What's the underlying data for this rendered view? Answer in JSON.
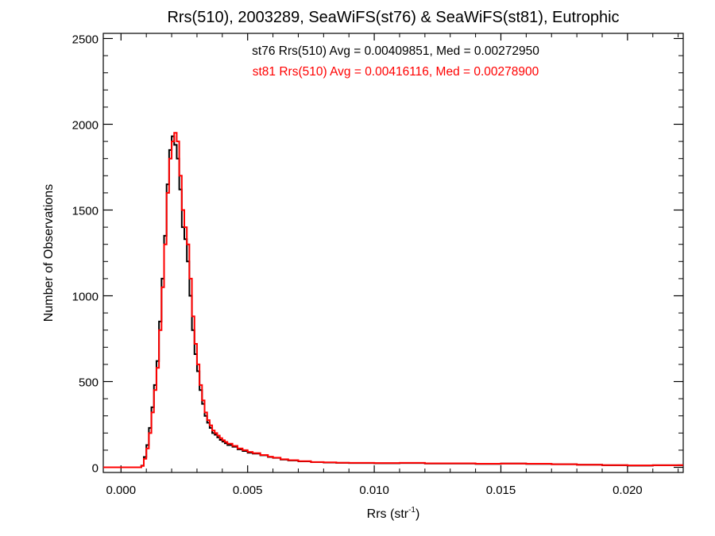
{
  "chart_data": {
    "type": "line",
    "title": "Rrs(510), 2003289, SeaWiFS(st76) & SeaWiFS(st81), Eutrophic",
    "xlabel_main": "Rrs (str",
    "xlabel_sup": "-1",
    "xlabel_close": ")",
    "ylabel": "Number of Observations",
    "xlim": [
      -0.0007,
      0.0222
    ],
    "ylim": [
      -30,
      2530
    ],
    "grid": false,
    "x_ticks": [
      0.0,
      0.005,
      0.01,
      0.015,
      0.02
    ],
    "x_tick_labels": [
      "0.000",
      "0.005",
      "0.010",
      "0.015",
      "0.020"
    ],
    "y_ticks": [
      0,
      500,
      1000,
      1500,
      2000,
      2500
    ],
    "y_tick_labels": [
      "0",
      "500",
      "1000",
      "1500",
      "2000",
      "2500"
    ],
    "annotations": [
      {
        "text": "st76 Rrs(510) Avg = 0.00409851, Med = 0.00272950",
        "color": "#000000"
      },
      {
        "text": "st81 Rrs(510) Avg = 0.00416116, Med = 0.00278900",
        "color": "#ff0000"
      }
    ],
    "series": [
      {
        "color": "#000000",
        "step": true,
        "x": [
          -0.0007,
          0.0,
          0.0008,
          0.0009,
          0.001,
          0.0011,
          0.0012,
          0.0013,
          0.0014,
          0.0015,
          0.0016,
          0.0017,
          0.0018,
          0.0019,
          0.002,
          0.0021,
          0.0022,
          0.0023,
          0.0024,
          0.0025,
          0.0026,
          0.0027,
          0.0028,
          0.0029,
          0.003,
          0.0031,
          0.0032,
          0.0033,
          0.0034,
          0.0035,
          0.0036,
          0.0037,
          0.0038,
          0.0039,
          0.004,
          0.0041,
          0.0042,
          0.0044,
          0.0046,
          0.0048,
          0.005,
          0.0052,
          0.0055,
          0.0058,
          0.006,
          0.0063,
          0.0066,
          0.007,
          0.0075,
          0.008,
          0.0085,
          0.009,
          0.0095,
          0.01,
          0.011,
          0.012,
          0.013,
          0.014,
          0.015,
          0.016,
          0.017,
          0.018,
          0.019,
          0.02,
          0.021,
          0.022
        ],
        "y": [
          0,
          0,
          10,
          60,
          130,
          230,
          350,
          480,
          620,
          850,
          1100,
          1350,
          1650,
          1850,
          1930,
          1880,
          1800,
          1620,
          1400,
          1330,
          1200,
          1000,
          800,
          660,
          560,
          450,
          370,
          300,
          260,
          230,
          200,
          190,
          175,
          160,
          150,
          140,
          130,
          120,
          105,
          95,
          85,
          80,
          70,
          60,
          55,
          45,
          40,
          35,
          30,
          28,
          26,
          25,
          25,
          24,
          25,
          22,
          22,
          20,
          22,
          20,
          18,
          15,
          12,
          10,
          12,
          12
        ]
      },
      {
        "color": "#ff0000",
        "step": true,
        "x": [
          -0.0007,
          0.0,
          0.0008,
          0.0009,
          0.001,
          0.0011,
          0.0012,
          0.0013,
          0.0014,
          0.0015,
          0.0016,
          0.0017,
          0.0018,
          0.0019,
          0.002,
          0.0021,
          0.0022,
          0.0023,
          0.0024,
          0.0025,
          0.0026,
          0.0027,
          0.0028,
          0.0029,
          0.003,
          0.0031,
          0.0032,
          0.0033,
          0.0034,
          0.0035,
          0.0036,
          0.0037,
          0.0038,
          0.0039,
          0.004,
          0.0041,
          0.0042,
          0.0044,
          0.0046,
          0.0048,
          0.005,
          0.0052,
          0.0055,
          0.0058,
          0.006,
          0.0063,
          0.0066,
          0.007,
          0.0075,
          0.008,
          0.0085,
          0.009,
          0.0095,
          0.01,
          0.011,
          0.012,
          0.013,
          0.014,
          0.015,
          0.016,
          0.017,
          0.018,
          0.019,
          0.02,
          0.021,
          0.022
        ],
        "y": [
          0,
          0,
          8,
          50,
          110,
          200,
          320,
          450,
          580,
          800,
          1050,
          1300,
          1600,
          1800,
          1900,
          1950,
          1900,
          1700,
          1500,
          1400,
          1300,
          1100,
          880,
          720,
          600,
          480,
          390,
          320,
          275,
          245,
          215,
          200,
          185,
          170,
          158,
          148,
          138,
          125,
          110,
          100,
          90,
          83,
          72,
          62,
          56,
          47,
          42,
          36,
          31,
          29,
          27,
          26,
          26,
          25,
          26,
          23,
          23,
          21,
          22,
          21,
          18,
          15,
          13,
          11,
          12,
          13
        ]
      }
    ]
  }
}
